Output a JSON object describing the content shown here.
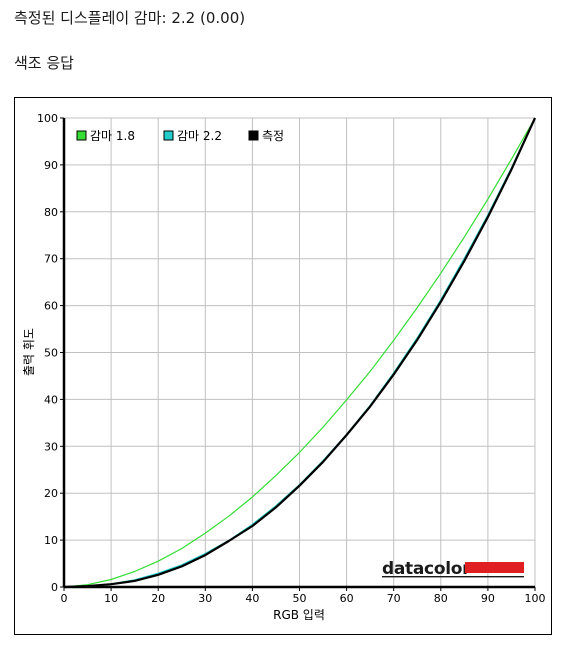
{
  "header": {
    "gamma_label": "측정된 디스플레이 감마: 2.2 (0.00)",
    "section_title": "색조 응답"
  },
  "logo_text": "datacolor",
  "colors": {
    "gamma18": "#33dd33",
    "gamma22": "#22cccc",
    "measured": "#000000",
    "grid": "#c0c0c0",
    "logo_bar": "#e02020"
  },
  "chart_data": {
    "type": "line",
    "title": "",
    "xlabel": "RGB 입력",
    "ylabel": "출력 휘도",
    "xlim": [
      0,
      100
    ],
    "ylim": [
      0,
      100
    ],
    "xticks": [
      0,
      10,
      20,
      30,
      40,
      50,
      60,
      70,
      80,
      90,
      100
    ],
    "yticks": [
      0,
      10,
      20,
      30,
      40,
      50,
      60,
      70,
      80,
      90,
      100
    ],
    "grid": true,
    "legend_position": "top-left",
    "x": [
      0,
      5,
      10,
      15,
      20,
      25,
      30,
      35,
      40,
      45,
      50,
      55,
      60,
      65,
      70,
      75,
      80,
      85,
      90,
      95,
      100
    ],
    "series": [
      {
        "name": "감마 1.8",
        "color": "#33dd33",
        "values": [
          0,
          0.5,
          1.6,
          3.3,
          5.5,
          8.2,
          11.5,
          15.1,
          19.2,
          23.8,
          28.7,
          34.1,
          39.9,
          46.0,
          52.6,
          59.6,
          66.9,
          74.6,
          82.7,
          91.2,
          100
        ]
      },
      {
        "name": "감마 2.2",
        "color": "#22cccc",
        "values": [
          0,
          0.1,
          0.6,
          1.5,
          2.9,
          4.7,
          7.1,
          9.9,
          13.3,
          17.3,
          21.8,
          26.9,
          32.5,
          38.7,
          45.6,
          53.1,
          61.2,
          70.0,
          79.3,
          89.3,
          100
        ]
      },
      {
        "name": "측정",
        "color": "#000000",
        "values": [
          0,
          0.2,
          0.6,
          1.3,
          2.6,
          4.4,
          6.8,
          9.8,
          13.0,
          17.0,
          21.6,
          26.7,
          32.4,
          38.5,
          45.3,
          52.7,
          60.8,
          69.5,
          78.9,
          89.0,
          100
        ]
      }
    ]
  }
}
